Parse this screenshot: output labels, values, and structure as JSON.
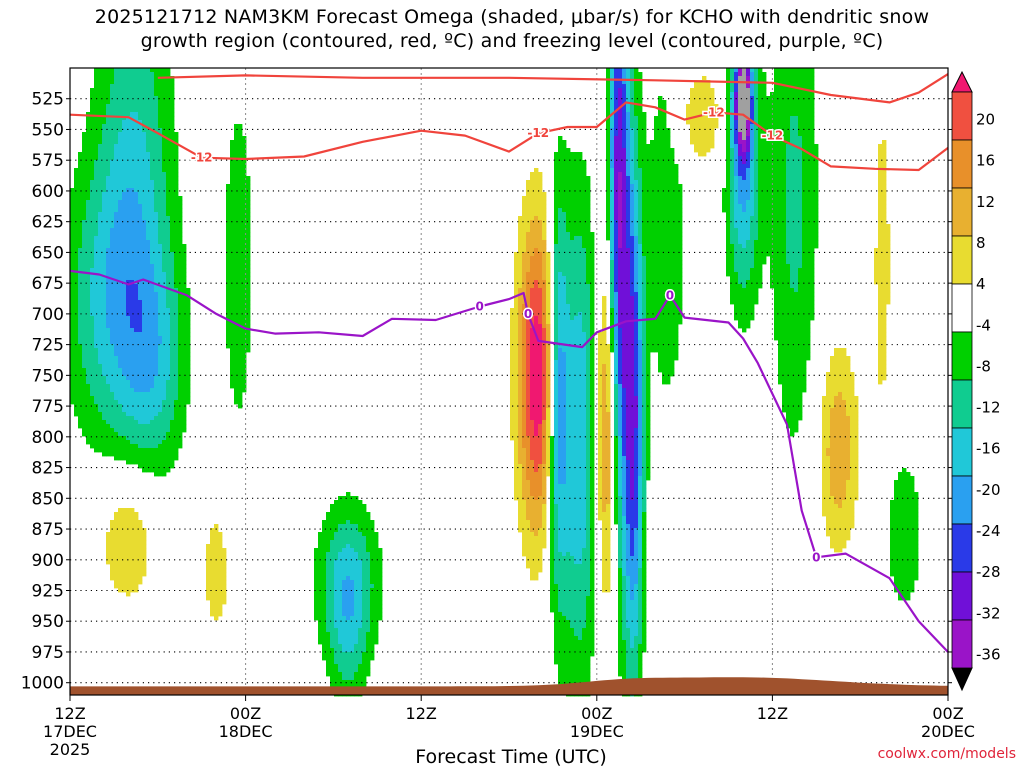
{
  "title_line1": "2025121712 NAM3KM Forecast Omega (shaded, μbar/s) for KCHO with dendritic snow",
  "title_line2": "growth region (contoured, red, ºC) and freezing level (contoured, purple, ºC)",
  "credit": "coolwx.com/models",
  "chart_data": {
    "type": "heatmap",
    "title": "2025121712 NAM3KM Forecast Omega (shaded, μbar/s) for KCHO with dendritic snow growth region (contoured, red, ºC) and freezing level (contoured, purple, ºC)",
    "xlabel": "Forecast Time (UTC)",
    "ylabel": "",
    "x_range_hours": [
      0,
      60
    ],
    "y_range_hpa": [
      1010,
      500
    ],
    "x_ticks": [
      {
        "hour": 0,
        "lines": [
          "12Z",
          "17DEC",
          "2025"
        ]
      },
      {
        "hour": 12,
        "lines": [
          "00Z",
          "18DEC"
        ]
      },
      {
        "hour": 24,
        "lines": [
          "12Z"
        ]
      },
      {
        "hour": 36,
        "lines": [
          "00Z",
          "19DEC"
        ]
      },
      {
        "hour": 48,
        "lines": [
          "12Z"
        ]
      },
      {
        "hour": 60,
        "lines": [
          "00Z",
          "20DEC"
        ]
      }
    ],
    "y_ticks": [
      525,
      550,
      575,
      600,
      625,
      650,
      675,
      700,
      725,
      750,
      775,
      800,
      825,
      850,
      875,
      900,
      925,
      950,
      975,
      1000
    ],
    "colorbar": {
      "levels": [
        -36,
        -32,
        -28,
        -24,
        -20,
        -16,
        -12,
        -8,
        -4,
        4,
        8,
        12,
        16,
        20
      ],
      "labels": [
        "20",
        "16",
        "12",
        "8",
        "4",
        "-4",
        "-8",
        "-12",
        "-16",
        "-20",
        "-24",
        "-28",
        "-32",
        "-36"
      ],
      "colors": [
        "#a0a0a0",
        "#9a14c8",
        "#7010d8",
        "#2a3ae8",
        "#2aa0f0",
        "#20c8d8",
        "#10cc90",
        "#00d000",
        "#ffffff",
        "#e8dc30",
        "#e8b030",
        "#e8902a",
        "#f05040",
        "#f01870"
      ]
    },
    "omega_blobs": [
      {
        "t": 4.4,
        "p": 620,
        "st": 1.9,
        "sp": 150,
        "v": -13
      },
      {
        "t": 2.2,
        "p": 690,
        "st": 2.2,
        "sp": 80,
        "v": -9
      },
      {
        "t": 6.0,
        "p": 740,
        "st": 1.5,
        "sp": 60,
        "v": -8
      },
      {
        "t": 4.0,
        "p": 880,
        "st": 1.5,
        "sp": 45,
        "v": 10
      },
      {
        "t": 10.0,
        "p": 910,
        "st": 0.8,
        "sp": 45,
        "v": 6
      },
      {
        "t": 11.5,
        "p": 660,
        "st": 0.8,
        "sp": 110,
        "v": -7
      },
      {
        "t": 19.0,
        "p": 915,
        "st": 1.6,
        "sp": 45,
        "v": -11
      },
      {
        "t": 19.0,
        "p": 960,
        "st": 1.0,
        "sp": 50,
        "v": -8
      },
      {
        "t": 32.0,
        "p": 750,
        "st": 1.0,
        "sp": 90,
        "v": 24
      },
      {
        "t": 33.3,
        "p": 760,
        "st": 0.5,
        "sp": 110,
        "v": -20
      },
      {
        "t": 34.8,
        "p": 800,
        "st": 1.0,
        "sp": 140,
        "v": -16
      },
      {
        "t": 36.7,
        "p": 790,
        "st": 0.6,
        "sp": 110,
        "v": 17
      },
      {
        "t": 37.5,
        "p": 620,
        "st": 0.5,
        "sp": 180,
        "v": -28
      },
      {
        "t": 38.5,
        "p": 790,
        "st": 0.5,
        "sp": 150,
        "v": -24
      },
      {
        "t": 40.8,
        "p": 620,
        "st": 1.1,
        "sp": 130,
        "v": -7
      },
      {
        "t": 46.0,
        "p": 575,
        "st": 0.8,
        "sp": 80,
        "v": -18
      },
      {
        "t": 46.0,
        "p": 525,
        "st": 0.4,
        "sp": 30,
        "v": -28
      },
      {
        "t": 49.5,
        "p": 610,
        "st": 1.2,
        "sp": 150,
        "v": -9
      },
      {
        "t": 52.5,
        "p": 810,
        "st": 1.0,
        "sp": 60,
        "v": 11
      },
      {
        "t": 55.5,
        "p": 660,
        "st": 0.4,
        "sp": 100,
        "v": 7
      },
      {
        "t": 57.0,
        "p": 880,
        "st": 1.2,
        "sp": 60,
        "v": -6
      },
      {
        "t": 43.0,
        "p": 540,
        "st": 1.3,
        "sp": 30,
        "v": 8
      }
    ],
    "dendritic_contours": [
      {
        "label": "-12",
        "points": [
          [
            0,
            538
          ],
          [
            4,
            540
          ],
          [
            6,
            553
          ],
          [
            9,
            573
          ],
          [
            12,
            574
          ],
          [
            16,
            572
          ],
          [
            20,
            560
          ],
          [
            24,
            551
          ],
          [
            27,
            555
          ],
          [
            30,
            568
          ],
          [
            32,
            553
          ],
          [
            34,
            548
          ],
          [
            36,
            548
          ],
          [
            38,
            528
          ],
          [
            40,
            532
          ],
          [
            42,
            542
          ],
          [
            44,
            536
          ],
          [
            46,
            538
          ],
          [
            48,
            555
          ],
          [
            50,
            566
          ],
          [
            52,
            580
          ],
          [
            55,
            582
          ],
          [
            58,
            583
          ],
          [
            60,
            565
          ]
        ]
      },
      {
        "label": "-12",
        "points": [
          [
            6,
            508
          ],
          [
            12,
            506
          ],
          [
            20,
            508
          ],
          [
            30,
            508
          ],
          [
            40,
            510
          ],
          [
            48,
            512
          ],
          [
            52,
            522
          ],
          [
            56,
            528
          ],
          [
            58,
            520
          ],
          [
            60,
            505
          ]
        ]
      }
    ],
    "freezing_level": {
      "label": "0",
      "points": [
        [
          0,
          665
        ],
        [
          2,
          668
        ],
        [
          4,
          676
        ],
        [
          5,
          672
        ],
        [
          8,
          685
        ],
        [
          10,
          700
        ],
        [
          12,
          712
        ],
        [
          14,
          716
        ],
        [
          17,
          715
        ],
        [
          20,
          718
        ],
        [
          22,
          704
        ],
        [
          25,
          705
        ],
        [
          28,
          694
        ],
        [
          30,
          688
        ],
        [
          31,
          683
        ],
        [
          31.3,
          700
        ],
        [
          32,
          722
        ],
        [
          35,
          727
        ],
        [
          36,
          715
        ],
        [
          38,
          706
        ],
        [
          40,
          704
        ],
        [
          41,
          685
        ],
        [
          42,
          703
        ],
        [
          45,
          707
        ],
        [
          46,
          720
        ],
        [
          47,
          740
        ],
        [
          49,
          790
        ],
        [
          50,
          860
        ],
        [
          51,
          898
        ],
        [
          53,
          895
        ],
        [
          56,
          915
        ],
        [
          58,
          950
        ],
        [
          60,
          975
        ]
      ]
    }
  }
}
